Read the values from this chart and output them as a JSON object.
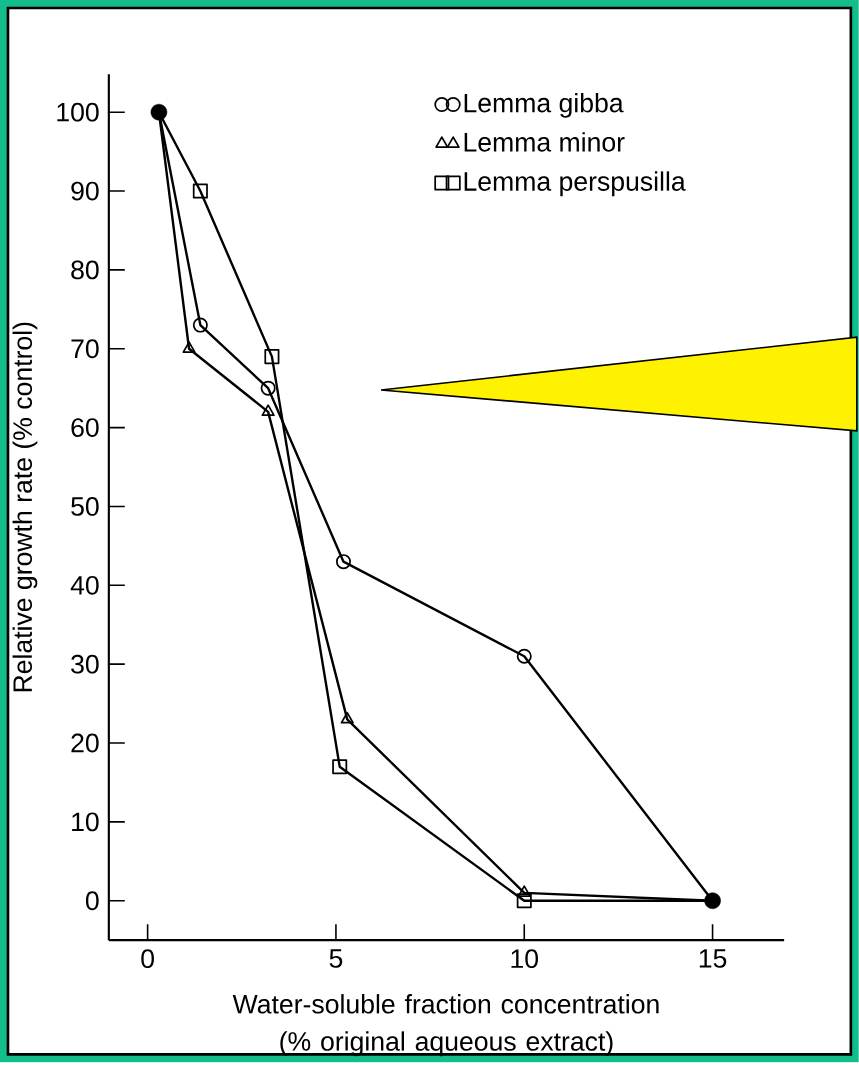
{
  "chart_data": {
    "type": "line",
    "xlabel": "Water-soluble fraction concentration (% original aqueous extract)",
    "ylabel": "Relative growth rate (% control)",
    "xlim": [
      -1.03,
      16.9
    ],
    "xticks": [
      0,
      5,
      10,
      15
    ],
    "ylim": [
      -5,
      104.8
    ],
    "yticks": [
      0,
      10,
      20,
      30,
      40,
      50,
      60,
      70,
      80,
      90,
      100
    ],
    "legend": "top right",
    "series": [
      {
        "name": "Lemma gibba",
        "color": "#000000",
        "marker": "circle",
        "x": [
          0.3,
          1.4,
          3.2,
          5.2,
          10,
          15
        ],
        "values": [
          100,
          73,
          65,
          43,
          31,
          0
        ]
      },
      {
        "name": "Lemma minor",
        "color": "#000000",
        "marker": "triangle",
        "x": [
          0.3,
          1.1,
          3.2,
          5.3,
          10,
          15
        ],
        "values": [
          100,
          70,
          62,
          23,
          1,
          0
        ]
      },
      {
        "name": "Lemma perspusilla",
        "color": "#000000",
        "marker": "square",
        "x": [
          0.3,
          1.4,
          3.3,
          5.1,
          10,
          15
        ],
        "values": [
          100,
          90,
          69,
          17,
          0,
          0
        ]
      },
      {
        "type": "scatter",
        "color": "#000000",
        "marker": "circle",
        "x": [
          0.3,
          15
        ],
        "values": [
          100,
          0
        ]
      }
    ]
  }
}
